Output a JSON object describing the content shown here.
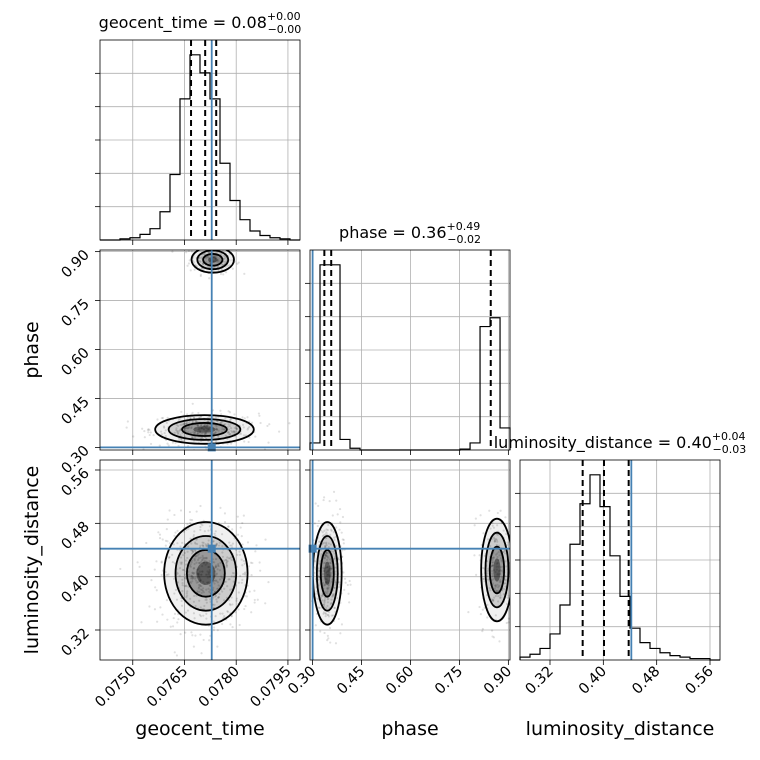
{
  "chart_data": {
    "type": "corner",
    "parameters": [
      "geocent_time",
      "phase",
      "luminosity_distance"
    ],
    "axis_labels": {
      "geocent_time": "geocent_time",
      "phase": "phase",
      "luminosity_distance": "luminosity_distance"
    },
    "ranges": {
      "geocent_time": [
        0.07405,
        0.07985
      ],
      "phase": [
        0.292,
        0.905
      ],
      "luminosity_distance": [
        0.275,
        0.575
      ]
    },
    "ticks": {
      "geocent_time": [
        "0.0750",
        "0.0765",
        "0.0780",
        "0.0795"
      ],
      "phase": [
        "0.30",
        "0.45",
        "0.60",
        "0.75",
        "0.90"
      ],
      "luminosity_distance": [
        "0.32",
        "0.40",
        "0.48",
        "0.56"
      ]
    },
    "titles": {
      "geocent_time": {
        "prefix": "geocent_time = 0.08",
        "plus": "+0.00",
        "minus": "−0.00"
      },
      "phase": {
        "prefix": "phase = 0.36",
        "plus": "+0.49",
        "minus": "−0.02"
      },
      "luminosity_distance": {
        "prefix": "luminosity_distance = 0.40",
        "plus": "+0.04",
        "minus": "−0.03"
      }
    },
    "truths": {
      "geocent_time": 0.07729,
      "phase": 0.3,
      "luminosity_distance": 0.442
    },
    "quantiles": {
      "geocent_time": [
        0.07669,
        0.0771,
        0.07742
      ],
      "phase": [
        0.336,
        0.357,
        0.846
      ],
      "luminosity_distance": [
        0.369,
        0.401,
        0.438
      ]
    },
    "histograms": {
      "geocent_time": {
        "edges": [
          0.07405,
          0.07434,
          0.07463,
          0.07492,
          0.07521,
          0.0755,
          0.07579,
          0.07608,
          0.07637,
          0.07666,
          0.07695,
          0.07724,
          0.07753,
          0.07782,
          0.07811,
          0.0784,
          0.07869,
          0.07898,
          0.07927,
          0.07956,
          0.07985
        ],
        "counts": [
          0,
          0,
          1,
          2,
          5,
          10,
          25,
          58,
          125,
          164,
          148,
          125,
          68,
          35,
          18,
          8,
          4,
          2,
          1,
          0
        ]
      },
      "phase": {
        "edges": [
          0.292,
          0.3227,
          0.3533,
          0.384,
          0.4146,
          0.4453,
          0.476,
          0.5066,
          0.5373,
          0.5679,
          0.5986,
          0.6293,
          0.6599,
          0.6906,
          0.7212,
          0.7519,
          0.7826,
          0.8132,
          0.8439,
          0.8745,
          0.905
        ],
        "counts": [
          8,
          210,
          210,
          12,
          2,
          0,
          0,
          0,
          0,
          0,
          0,
          0,
          0,
          0,
          0,
          1,
          8,
          140,
          150,
          25
        ]
      },
      "luminosity_distance": {
        "edges": [
          0.275,
          0.29,
          0.305,
          0.32,
          0.335,
          0.35,
          0.365,
          0.38,
          0.395,
          0.41,
          0.425,
          0.44,
          0.455,
          0.47,
          0.485,
          0.5,
          0.515,
          0.53,
          0.545,
          0.56,
          0.575
        ],
        "counts": [
          2,
          4,
          8,
          18,
          38,
          80,
          108,
          128,
          106,
          72,
          44,
          22,
          12,
          8,
          5,
          3,
          2,
          1,
          1,
          0
        ]
      }
    },
    "density_clusters": [
      {
        "pair": [
          "geocent_time",
          "phase"
        ],
        "center": [
          0.07732,
          0.875
        ],
        "spread": [
          0.00028,
          0.018
        ],
        "weight": 0.35
      },
      {
        "pair": [
          "geocent_time",
          "phase"
        ],
        "center": [
          0.07708,
          0.355
        ],
        "spread": [
          0.00065,
          0.02
        ],
        "weight": 0.65
      },
      {
        "pair": [
          "geocent_time",
          "luminosity_distance"
        ],
        "center": [
          0.07712,
          0.405
        ],
        "spread": [
          0.00055,
          0.035
        ],
        "weight": 1.0
      },
      {
        "pair": [
          "phase",
          "luminosity_distance"
        ],
        "center": [
          0.345,
          0.405
        ],
        "spread": [
          0.02,
          0.035
        ],
        "weight": 0.6
      },
      {
        "pair": [
          "phase",
          "luminosity_distance"
        ],
        "center": [
          0.865,
          0.41
        ],
        "spread": [
          0.022,
          0.035
        ],
        "weight": 0.4
      }
    ],
    "grid": true,
    "truth_color": "#4682b4",
    "contour_color": "#000000"
  }
}
